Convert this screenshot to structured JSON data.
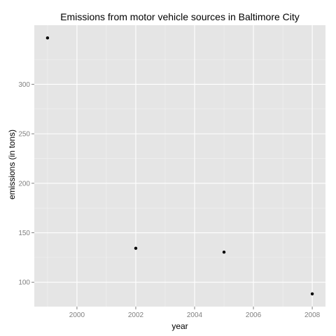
{
  "chart_data": {
    "type": "scatter",
    "title": "Emissions from motor vehicle sources in Baltimore City",
    "xlabel": "year",
    "ylabel": "emissions (in tons)",
    "x": [
      1999,
      2002,
      2005,
      2008
    ],
    "y": [
      346.82,
      134.31,
      130.43,
      88.28
    ],
    "xlim": [
      1998.55,
      2008.45
    ],
    "ylim": [
      75.4,
      359.7
    ],
    "xticks": [
      2000,
      2002,
      2004,
      2006,
      2008
    ],
    "xtick_labels": [
      "2000",
      "2002",
      "2004",
      "2006",
      "2008"
    ],
    "yticks": [
      100,
      150,
      200,
      250,
      300
    ],
    "ytick_labels": [
      "100",
      "150",
      "200",
      "250",
      "300"
    ],
    "grid": true,
    "legend": "none",
    "colors": {
      "panel_background": "#e5e5e5",
      "grid_major": "#ffffff",
      "grid_minor": "#f2f2f2",
      "point": "#000000",
      "tick_label": "#7f7f7f"
    }
  }
}
